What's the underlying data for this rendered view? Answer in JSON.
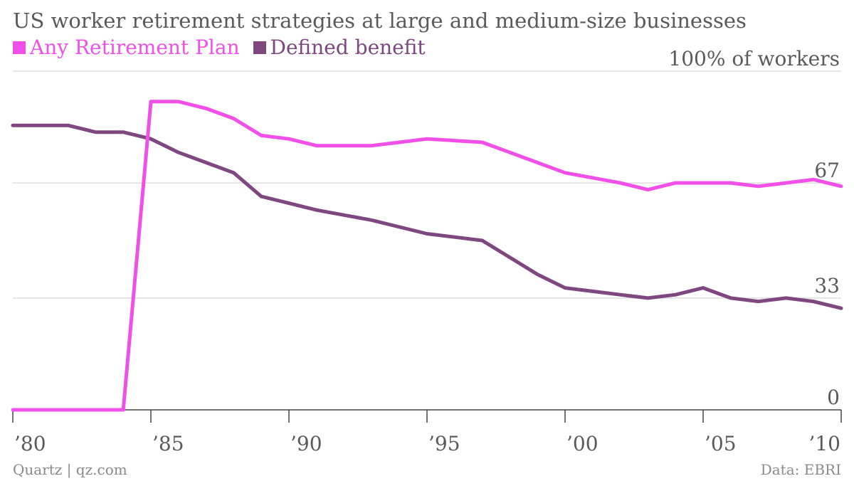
{
  "title": "US worker retirement strategies at large and medium-size businesses",
  "footer": {
    "credit": "Quartz | qz.com",
    "source": "Data: EBRI"
  },
  "chart_data": {
    "type": "line",
    "x": [
      1980,
      1981,
      1982,
      1983,
      1984,
      1985,
      1986,
      1987,
      1988,
      1989,
      1990,
      1991,
      1992,
      1993,
      1994,
      1995,
      1996,
      1997,
      1998,
      1999,
      2000,
      2001,
      2002,
      2003,
      2004,
      2005,
      2006,
      2007,
      2008,
      2009,
      2010
    ],
    "series": [
      {
        "name": "Any Retirement Plan",
        "color": "#f050e8",
        "values": [
          0,
          0,
          0,
          0,
          0,
          91,
          91,
          89,
          86,
          81,
          80,
          78,
          78,
          78,
          79,
          80,
          79.5,
          79,
          76,
          73,
          70,
          68.5,
          67,
          65,
          67,
          67,
          67,
          66,
          67,
          68,
          66
        ]
      },
      {
        "name": "Defined benefit",
        "color": "#7e477f",
        "values": [
          84,
          84,
          84,
          82,
          82,
          80,
          76,
          73,
          70,
          63,
          61,
          59,
          57.5,
          56,
          54,
          52,
          51,
          50,
          45,
          40,
          36,
          35,
          34,
          33,
          34,
          36,
          33,
          32,
          33,
          32,
          30
        ]
      }
    ],
    "xticks": [
      1980,
      1985,
      1990,
      1995,
      2000,
      2005,
      2010
    ],
    "xtick_labels": [
      "’80",
      "’85",
      "’90",
      "’95",
      "’00",
      "’05",
      "’10"
    ],
    "yticks": [
      0,
      33,
      67,
      100
    ],
    "ytick_labels": [
      "0",
      "33",
      "67",
      "100% of workers"
    ],
    "ylim": [
      0,
      100
    ],
    "xlim": [
      1980,
      2010
    ],
    "grid": true,
    "legend_position": "top-left"
  }
}
